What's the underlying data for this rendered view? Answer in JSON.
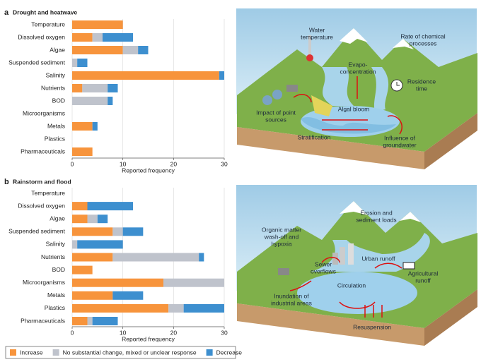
{
  "chart_data": [
    {
      "type": "stacked-barh",
      "panel": "a",
      "title": "Drought and heatwave",
      "xlabel": "Reported frequency",
      "categories": [
        "Temperature",
        "Dissolved oxygen",
        "Algae",
        "Suspended sediment",
        "Salinity",
        "Nutrients",
        "BOD",
        "Microorganisms",
        "Metals",
        "Plastics",
        "Pharmaceuticals"
      ],
      "series": [
        {
          "color": "#f7943c",
          "values": [
            10,
            4,
            10,
            0,
            29,
            2,
            0,
            0,
            4,
            0,
            4
          ]
        },
        {
          "color": "#bfc3cc",
          "values": [
            0,
            2,
            3,
            1,
            0,
            5,
            7,
            0,
            0,
            0,
            0
          ]
        },
        {
          "color": "#3d8fcf",
          "values": [
            0,
            6,
            2,
            2,
            1,
            2,
            1,
            0,
            1,
            0,
            0
          ]
        }
      ],
      "xlim": [
        0,
        30
      ],
      "xticks": [
        0,
        10,
        20,
        30
      ]
    },
    {
      "type": "stacked-barh",
      "panel": "b",
      "title": "Rainstorm and flood",
      "xlabel": "Reported frequency",
      "categories": [
        "Temperature",
        "Dissolved oxygen",
        "Algae",
        "Suspended sediment",
        "Salinity",
        "Nutrients",
        "BOD",
        "Microorganisms",
        "Metals",
        "Plastics",
        "Pharmaceuticals"
      ],
      "series": [
        {
          "name": "Increase",
          "color": "#f7943c",
          "values": [
            0,
            3,
            3,
            8,
            0,
            8,
            4,
            18,
            8,
            19,
            3
          ]
        },
        {
          "name": "No substantial change, mixed or unclear response",
          "color": "#bfc3cc",
          "values": [
            0,
            0,
            2,
            2,
            1,
            17,
            0,
            12,
            0,
            3,
            1
          ]
        },
        {
          "name": "Decrease",
          "color": "#3d8fcf",
          "values": [
            0,
            9,
            2,
            4,
            9,
            1,
            0,
            0,
            6,
            8,
            5
          ]
        }
      ],
      "xlim": [
        0,
        30
      ],
      "xticks": [
        0,
        10,
        20,
        30
      ]
    }
  ],
  "diagrams": [
    {
      "labels": [
        {
          "lines": [
            "Water",
            "temperature"
          ]
        },
        {
          "lines": [
            "Rate of chemical",
            "processes"
          ]
        },
        {
          "lines": [
            "Evapo-",
            "concentration"
          ]
        },
        {
          "lines": [
            "Residence",
            "time"
          ]
        },
        {
          "lines": [
            "Impact of point",
            "sources"
          ]
        },
        {
          "lines": [
            "Algal bloom"
          ]
        },
        {
          "lines": [
            "Stratification"
          ]
        },
        {
          "lines": [
            "Influence of",
            "groundwater"
          ]
        }
      ]
    },
    {
      "labels": [
        {
          "lines": [
            "Erosion and",
            "sediment loads"
          ]
        },
        {
          "lines": [
            "Organic matter",
            "wash-off and",
            "hypoxia"
          ]
        },
        {
          "lines": [
            "Urban runoff"
          ]
        },
        {
          "lines": [
            "Sewer",
            "overflows"
          ]
        },
        {
          "lines": [
            "Agricultural",
            "runoff"
          ]
        },
        {
          "lines": [
            "Circulation"
          ]
        },
        {
          "lines": [
            "Inundation of",
            "industrial areas"
          ]
        },
        {
          "lines": [
            "Resuspension"
          ]
        }
      ]
    }
  ]
}
